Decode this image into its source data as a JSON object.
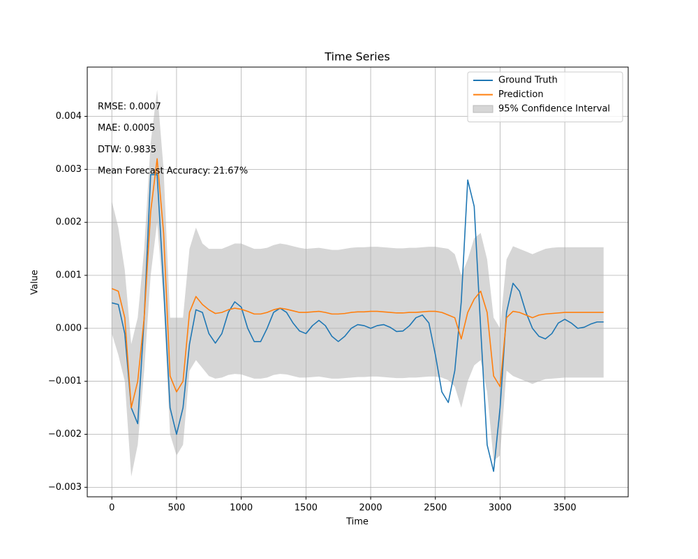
{
  "chart_data": {
    "type": "line",
    "title": "Time Series",
    "x_label": "Time",
    "y_label": "Value",
    "x": [
      0,
      50,
      100,
      150,
      200,
      250,
      300,
      350,
      400,
      450,
      500,
      550,
      600,
      650,
      700,
      750,
      800,
      850,
      900,
      950,
      1000,
      1050,
      1100,
      1150,
      1200,
      1250,
      1300,
      1350,
      1400,
      1450,
      1500,
      1550,
      1600,
      1650,
      1700,
      1750,
      1800,
      1850,
      1900,
      1950,
      2000,
      2050,
      2100,
      2150,
      2200,
      2250,
      2300,
      2350,
      2400,
      2450,
      2500,
      2550,
      2600,
      2650,
      2700,
      2750,
      2800,
      2850,
      2900,
      2950,
      3000,
      3050,
      3100,
      3150,
      3200,
      3250,
      3300,
      3350,
      3400,
      3450,
      3500,
      3550,
      3600,
      3650,
      3700,
      3750,
      3800
    ],
    "series": [
      {
        "name": "Ground Truth",
        "color": "#1f77b4",
        "values": [
          0.00048,
          0.00045,
          -0.0001,
          -0.0015,
          -0.0018,
          0.0002,
          0.0029,
          0.0029,
          0.0008,
          -0.0015,
          -0.002,
          -0.0015,
          -0.0003,
          0.00035,
          0.0003,
          -0.0001,
          -0.00028,
          -0.0001,
          0.0003,
          0.0005,
          0.0004,
          0,
          -0.00025,
          -0.00025,
          0,
          0.0003,
          0.00038,
          0.0003,
          0.0001,
          -5e-05,
          -0.0001,
          5e-05,
          0.00015,
          5e-05,
          -0.00015,
          -0.00025,
          -0.00015,
          0,
          7e-05,
          5e-05,
          0,
          5e-05,
          7e-05,
          2e-05,
          -6e-05,
          -5e-05,
          5e-05,
          0.0002,
          0.00025,
          0.0001,
          -0.0005,
          -0.0012,
          -0.0014,
          -0.0008,
          0.0005,
          0.0028,
          0.0023,
          0,
          -0.0022,
          -0.0027,
          -0.0015,
          0.0003,
          0.00085,
          0.0007,
          0.0003,
          0,
          -0.00015,
          -0.0002,
          -0.0001,
          0.0001,
          0.00017,
          0.0001,
          0,
          2e-05,
          8e-05,
          0.00012,
          0.00012
        ]
      },
      {
        "name": "Prediction",
        "color": "#ff7f0e",
        "values": [
          0.00075,
          0.0007,
          0.0002,
          -0.0015,
          -0.001,
          0.0002,
          0.0022,
          0.0032,
          0.0018,
          -0.0009,
          -0.0012,
          -0.001,
          0.0003,
          0.0006,
          0.00045,
          0.00035,
          0.00028,
          0.0003,
          0.00035,
          0.00038,
          0.00036,
          0.00032,
          0.00027,
          0.00027,
          0.0003,
          0.00035,
          0.00038,
          0.00036,
          0.00033,
          0.0003,
          0.0003,
          0.00031,
          0.00032,
          0.0003,
          0.00027,
          0.00027,
          0.00028,
          0.0003,
          0.00031,
          0.00031,
          0.00032,
          0.00032,
          0.00031,
          0.0003,
          0.00029,
          0.00029,
          0.0003,
          0.0003,
          0.00031,
          0.00032,
          0.00032,
          0.0003,
          0.00025,
          0.0002,
          -0.0002,
          0.0003,
          0.00055,
          0.0007,
          0.0003,
          -0.0009,
          -0.0011,
          0.0002,
          0.00032,
          0.0003,
          0.00025,
          0.0002,
          0.00025,
          0.00027,
          0.00028,
          0.00029,
          0.0003,
          0.0003,
          0.0003,
          0.0003,
          0.0003,
          0.0003,
          0.0003
        ]
      }
    ],
    "band": {
      "name": "95% Confidence Interval",
      "color": "#d6d6d6",
      "upper": [
        0.0024,
        0.0019,
        0.0011,
        -0.0003,
        0.0002,
        0.0015,
        0.0035,
        0.0045,
        0.003,
        0.0002,
        0.0002,
        0.0002,
        0.0015,
        0.0019,
        0.0016,
        0.0015,
        0.0015,
        0.0015,
        0.00155,
        0.0016,
        0.0016,
        0.00155,
        0.0015,
        0.0015,
        0.00152,
        0.00157,
        0.0016,
        0.00158,
        0.00155,
        0.00152,
        0.0015,
        0.00151,
        0.00152,
        0.0015,
        0.00148,
        0.00148,
        0.0015,
        0.00152,
        0.00153,
        0.00153,
        0.00154,
        0.00154,
        0.00153,
        0.00152,
        0.00151,
        0.00151,
        0.00152,
        0.00152,
        0.00153,
        0.00154,
        0.00154,
        0.00152,
        0.0015,
        0.0014,
        0.001,
        0.0013,
        0.0017,
        0.0018,
        0.0013,
        0.0002,
        0,
        0.0013,
        0.00155,
        0.0015,
        0.00145,
        0.0014,
        0.00145,
        0.0015,
        0.00152,
        0.00153,
        0.00153,
        0.00153,
        0.00153,
        0.00153,
        0.00153,
        0.00153,
        0.00153
      ],
      "lower": [
        -0.0001,
        -0.0005,
        -0.001,
        -0.0028,
        -0.0022,
        -0.0008,
        0.001,
        0.002,
        0.0005,
        -0.002,
        -0.0024,
        -0.0022,
        -0.0008,
        -0.0006,
        -0.00075,
        -0.0009,
        -0.00095,
        -0.00093,
        -0.00088,
        -0.00086,
        -0.00087,
        -0.00091,
        -0.00095,
        -0.00095,
        -0.00093,
        -0.00088,
        -0.00086,
        -0.00087,
        -0.0009,
        -0.00093,
        -0.00093,
        -0.00092,
        -0.00091,
        -0.00093,
        -0.00095,
        -0.00095,
        -0.00094,
        -0.00093,
        -0.00092,
        -0.00092,
        -0.00091,
        -0.00091,
        -0.00092,
        -0.00093,
        -0.00094,
        -0.00094,
        -0.00093,
        -0.00093,
        -0.00092,
        -0.00091,
        -0.00091,
        -0.00093,
        -0.00098,
        -0.0011,
        -0.0015,
        -0.001,
        -0.0007,
        -0.0006,
        -0.0012,
        -0.0025,
        -0.0024,
        -0.0008,
        -0.0009,
        -0.00095,
        -0.001,
        -0.00105,
        -0.001,
        -0.00096,
        -0.00095,
        -0.00094,
        -0.00093,
        -0.00093,
        -0.00093,
        -0.00093,
        -0.00093,
        -0.00093,
        -0.00093
      ]
    },
    "annotations": [
      "RMSE: 0.0007",
      "MAE: 0.0005",
      "DTW: 0.9835",
      "Mean Forecast Accuracy: 21.67%"
    ],
    "xlim": [
      -190,
      3990
    ],
    "ylim": [
      -0.00318,
      0.00493
    ],
    "xticks": [
      0,
      500,
      1000,
      1500,
      2000,
      2500,
      3000,
      3500
    ],
    "yticks": [
      {
        "value": -0.003,
        "label": "−0.003"
      },
      {
        "value": -0.002,
        "label": "−0.002"
      },
      {
        "value": -0.001,
        "label": "−0.001"
      },
      {
        "value": 0,
        "label": "0.000"
      },
      {
        "value": 0.001,
        "label": "0.001"
      },
      {
        "value": 0.002,
        "label": "0.002"
      },
      {
        "value": 0.003,
        "label": "0.003"
      },
      {
        "value": 0.004,
        "label": "0.004"
      }
    ],
    "grid": true,
    "legend": "upper right"
  }
}
